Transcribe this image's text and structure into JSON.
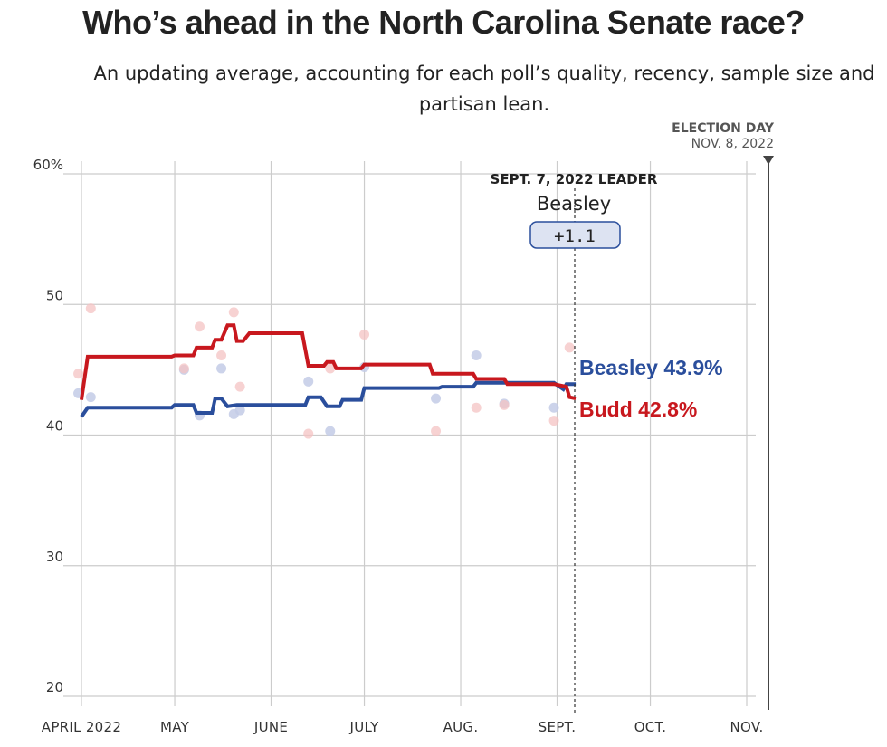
{
  "header": {
    "title": "Who’s ahead in the North Carolina Senate race?",
    "subtitle": "An updating average, accounting for each poll’s quality, recency, sample size and partisan lean."
  },
  "election": {
    "label": "ELECTION DAY",
    "date": "NOV. 8, 2022"
  },
  "leader_box": {
    "heading": "SEPT. 7, 2022 LEADER",
    "name": "Beasley",
    "margin": "+1.1"
  },
  "end_labels": {
    "beasley": "Beasley 43.9%",
    "budd": "Budd 42.8%"
  },
  "colors": {
    "beasley": "#2a4e9c",
    "budd": "#c8181e",
    "beasley_poll": "#c3cbe6",
    "budd_poll": "#f4c3c3",
    "grid": "#cccccc",
    "leader_box_fill": "#dde3f2",
    "leader_box_stroke": "#2a4e9c"
  },
  "chart_data": {
    "type": "line",
    "title": "Who’s ahead in the North Carolina Senate race?",
    "ylim": [
      20,
      60
    ],
    "y_ticks": [
      20,
      30,
      40,
      50,
      60
    ],
    "y_tick_labels": [
      "20",
      "30",
      "40",
      "50",
      "60%"
    ],
    "x_range": [
      "2022-04-01",
      "2022-11-08"
    ],
    "x_ticks": [
      {
        "date": "2022-04-01",
        "label": "APRIL 2022"
      },
      {
        "date": "2022-05-01",
        "label": "MAY"
      },
      {
        "date": "2022-06-01",
        "label": "JUNE"
      },
      {
        "date": "2022-07-01",
        "label": "JULY"
      },
      {
        "date": "2022-08-01",
        "label": "AUG."
      },
      {
        "date": "2022-09-01",
        "label": "SEPT."
      },
      {
        "date": "2022-10-01",
        "label": "OCT."
      },
      {
        "date": "2022-11-01",
        "label": "NOV."
      }
    ],
    "grid": true,
    "series": [
      {
        "name": "Beasley",
        "points": [
          [
            "2022-04-01",
            41.4
          ],
          [
            "2022-04-03",
            42.1
          ],
          [
            "2022-04-30",
            42.1
          ],
          [
            "2022-05-01",
            42.3
          ],
          [
            "2022-05-07",
            42.3
          ],
          [
            "2022-05-08",
            41.7
          ],
          [
            "2022-05-13",
            41.7
          ],
          [
            "2022-05-14",
            42.8
          ],
          [
            "2022-05-16",
            42.8
          ],
          [
            "2022-05-18",
            42.2
          ],
          [
            "2022-05-21",
            42.3
          ],
          [
            "2022-06-12",
            42.3
          ],
          [
            "2022-06-13",
            42.9
          ],
          [
            "2022-06-17",
            42.9
          ],
          [
            "2022-06-19",
            42.2
          ],
          [
            "2022-06-23",
            42.2
          ],
          [
            "2022-06-24",
            42.7
          ],
          [
            "2022-06-30",
            42.7
          ],
          [
            "2022-07-01",
            43.6
          ],
          [
            "2022-07-25",
            43.6
          ],
          [
            "2022-07-26",
            43.7
          ],
          [
            "2022-08-05",
            43.7
          ],
          [
            "2022-08-06",
            44.0
          ],
          [
            "2022-08-31",
            44.0
          ],
          [
            "2022-09-03",
            43.5
          ],
          [
            "2022-09-04",
            43.9
          ],
          [
            "2022-09-07",
            43.9
          ]
        ]
      },
      {
        "name": "Budd",
        "points": [
          [
            "2022-04-01",
            42.7
          ],
          [
            "2022-04-03",
            46.0
          ],
          [
            "2022-04-30",
            46.0
          ],
          [
            "2022-05-01",
            46.1
          ],
          [
            "2022-05-07",
            46.1
          ],
          [
            "2022-05-08",
            46.7
          ],
          [
            "2022-05-13",
            46.7
          ],
          [
            "2022-05-14",
            47.3
          ],
          [
            "2022-05-16",
            47.3
          ],
          [
            "2022-05-18",
            48.4
          ],
          [
            "2022-05-20",
            48.4
          ],
          [
            "2022-05-21",
            47.2
          ],
          [
            "2022-05-23",
            47.2
          ],
          [
            "2022-05-25",
            47.8
          ],
          [
            "2022-06-11",
            47.8
          ],
          [
            "2022-06-13",
            45.3
          ],
          [
            "2022-06-18",
            45.3
          ],
          [
            "2022-06-19",
            45.6
          ],
          [
            "2022-06-21",
            45.6
          ],
          [
            "2022-06-22",
            45.1
          ],
          [
            "2022-06-30",
            45.1
          ],
          [
            "2022-07-01",
            45.4
          ],
          [
            "2022-07-22",
            45.4
          ],
          [
            "2022-07-23",
            44.7
          ],
          [
            "2022-08-05",
            44.7
          ],
          [
            "2022-08-06",
            44.3
          ],
          [
            "2022-08-15",
            44.3
          ],
          [
            "2022-08-16",
            43.9
          ],
          [
            "2022-08-31",
            43.9
          ],
          [
            "2022-09-04",
            43.7
          ],
          [
            "2022-09-05",
            42.9
          ],
          [
            "2022-09-07",
            42.8
          ]
        ]
      }
    ],
    "polls": {
      "Beasley": [
        [
          "2022-03-31",
          43.2
        ],
        [
          "2022-04-04",
          42.9
        ],
        [
          "2022-05-04",
          45.0
        ],
        [
          "2022-05-09",
          41.5
        ],
        [
          "2022-05-16",
          45.1
        ],
        [
          "2022-05-20",
          41.6
        ],
        [
          "2022-05-22",
          41.9
        ],
        [
          "2022-06-13",
          44.1
        ],
        [
          "2022-06-20",
          40.3
        ],
        [
          "2022-07-01",
          45.2
        ],
        [
          "2022-07-24",
          42.8
        ],
        [
          "2022-08-06",
          46.1
        ],
        [
          "2022-08-15",
          42.4
        ],
        [
          "2022-08-31",
          42.1
        ]
      ],
      "Budd": [
        [
          "2022-03-31",
          44.7
        ],
        [
          "2022-04-04",
          49.7
        ],
        [
          "2022-05-04",
          45.1
        ],
        [
          "2022-05-09",
          48.3
        ],
        [
          "2022-05-16",
          46.1
        ],
        [
          "2022-05-20",
          49.4
        ],
        [
          "2022-05-22",
          43.7
        ],
        [
          "2022-06-13",
          40.1
        ],
        [
          "2022-06-20",
          45.1
        ],
        [
          "2022-07-01",
          47.7
        ],
        [
          "2022-07-24",
          40.3
        ],
        [
          "2022-08-06",
          42.1
        ],
        [
          "2022-08-15",
          42.3
        ],
        [
          "2022-08-31",
          41.1
        ],
        [
          "2022-09-05",
          46.7
        ]
      ]
    },
    "leader_date": "2022-09-07",
    "election_date": "2022-11-08"
  }
}
